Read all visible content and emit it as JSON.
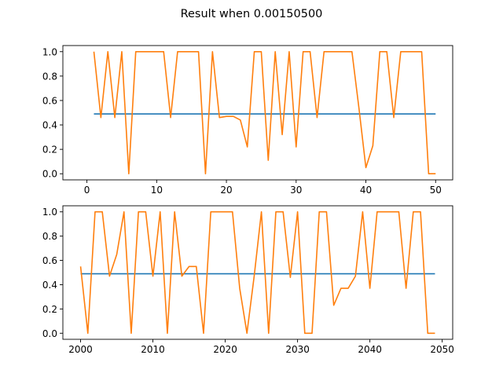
{
  "figure": {
    "suptitle": "Result when 0.00150500"
  },
  "colors": {
    "series_blue": "#1f77b4",
    "series_orange": "#ff7f0e"
  },
  "chart_data": [
    {
      "type": "line",
      "title": "",
      "xlabel": "",
      "ylabel": "",
      "xlim": [
        -3.45,
        52.45
      ],
      "ylim": [
        -0.05,
        1.05
      ],
      "xticks": [
        0,
        10,
        20,
        30,
        40,
        50
      ],
      "yticks": [
        0.0,
        0.2,
        0.4,
        0.6,
        0.8,
        1.0
      ],
      "xtick_labels": [
        "0",
        "10",
        "20",
        "30",
        "40",
        "50"
      ],
      "ytick_labels": [
        "0.0",
        "0.2",
        "0.4",
        "0.6",
        "0.8",
        "1.0"
      ],
      "grid": false,
      "series": [
        {
          "color": "#1f77b4",
          "x": [
            1,
            50
          ],
          "y": [
            0.49,
            0.49
          ]
        },
        {
          "color": "#ff7f0e",
          "x": [
            1,
            2,
            3,
            4,
            5,
            6,
            7,
            8,
            9,
            10,
            11,
            12,
            13,
            14,
            15,
            16,
            17,
            18,
            19,
            20,
            21,
            22,
            23,
            24,
            25,
            26,
            27,
            28,
            29,
            30,
            31,
            32,
            33,
            34,
            35,
            36,
            37,
            38,
            39,
            40,
            41,
            42,
            43,
            44,
            45,
            46,
            47,
            48,
            49,
            50
          ],
          "y": [
            1.0,
            0.46,
            1.0,
            0.46,
            1.0,
            0.0,
            1.0,
            1.0,
            1.0,
            1.0,
            1.0,
            0.46,
            1.0,
            1.0,
            1.0,
            1.0,
            0.0,
            1.0,
            0.46,
            0.47,
            0.47,
            0.44,
            0.22,
            1.0,
            1.0,
            0.11,
            1.0,
            0.32,
            1.0,
            0.22,
            1.0,
            1.0,
            0.46,
            1.0,
            1.0,
            1.0,
            1.0,
            1.0,
            0.54,
            0.05,
            0.23,
            1.0,
            1.0,
            0.46,
            1.0,
            1.0,
            1.0,
            1.0,
            0.0,
            0.0
          ]
        }
      ]
    },
    {
      "type": "line",
      "title": "",
      "xlabel": "",
      "ylabel": "",
      "xlim": [
        1997.55,
        2051.45
      ],
      "ylim": [
        -0.05,
        1.05
      ],
      "xticks": [
        2000,
        2010,
        2020,
        2030,
        2040,
        2050
      ],
      "yticks": [
        0.0,
        0.2,
        0.4,
        0.6,
        0.8,
        1.0
      ],
      "xtick_labels": [
        "2000",
        "2010",
        "2020",
        "2030",
        "2040",
        "2050"
      ],
      "ytick_labels": [
        "0.0",
        "0.2",
        "0.4",
        "0.6",
        "0.8",
        "1.0"
      ],
      "grid": false,
      "series": [
        {
          "color": "#1f77b4",
          "x": [
            2000,
            2049
          ],
          "y": [
            0.49,
            0.49
          ]
        },
        {
          "color": "#ff7f0e",
          "x": [
            2000,
            2001,
            2002,
            2003,
            2004,
            2005,
            2006,
            2007,
            2008,
            2009,
            2010,
            2011,
            2012,
            2013,
            2014,
            2015,
            2016,
            2017,
            2018,
            2019,
            2020,
            2021,
            2022,
            2023,
            2024,
            2025,
            2026,
            2027,
            2028,
            2029,
            2030,
            2031,
            2032,
            2033,
            2034,
            2035,
            2036,
            2037,
            2038,
            2039,
            2040,
            2041,
            2042,
            2043,
            2044,
            2045,
            2046,
            2047,
            2048,
            2049
          ],
          "y": [
            0.55,
            0.0,
            1.0,
            1.0,
            0.47,
            0.65,
            1.0,
            0.0,
            1.0,
            1.0,
            0.47,
            1.0,
            0.0,
            1.0,
            0.47,
            0.55,
            0.55,
            0.0,
            1.0,
            1.0,
            1.0,
            1.0,
            0.37,
            0.0,
            0.47,
            1.0,
            0.0,
            1.0,
            1.0,
            0.46,
            1.0,
            0.0,
            0.0,
            1.0,
            1.0,
            0.23,
            0.37,
            0.37,
            0.47,
            1.0,
            0.37,
            1.0,
            1.0,
            1.0,
            1.0,
            0.37,
            1.0,
            1.0,
            0.0,
            0.0
          ]
        }
      ]
    }
  ]
}
